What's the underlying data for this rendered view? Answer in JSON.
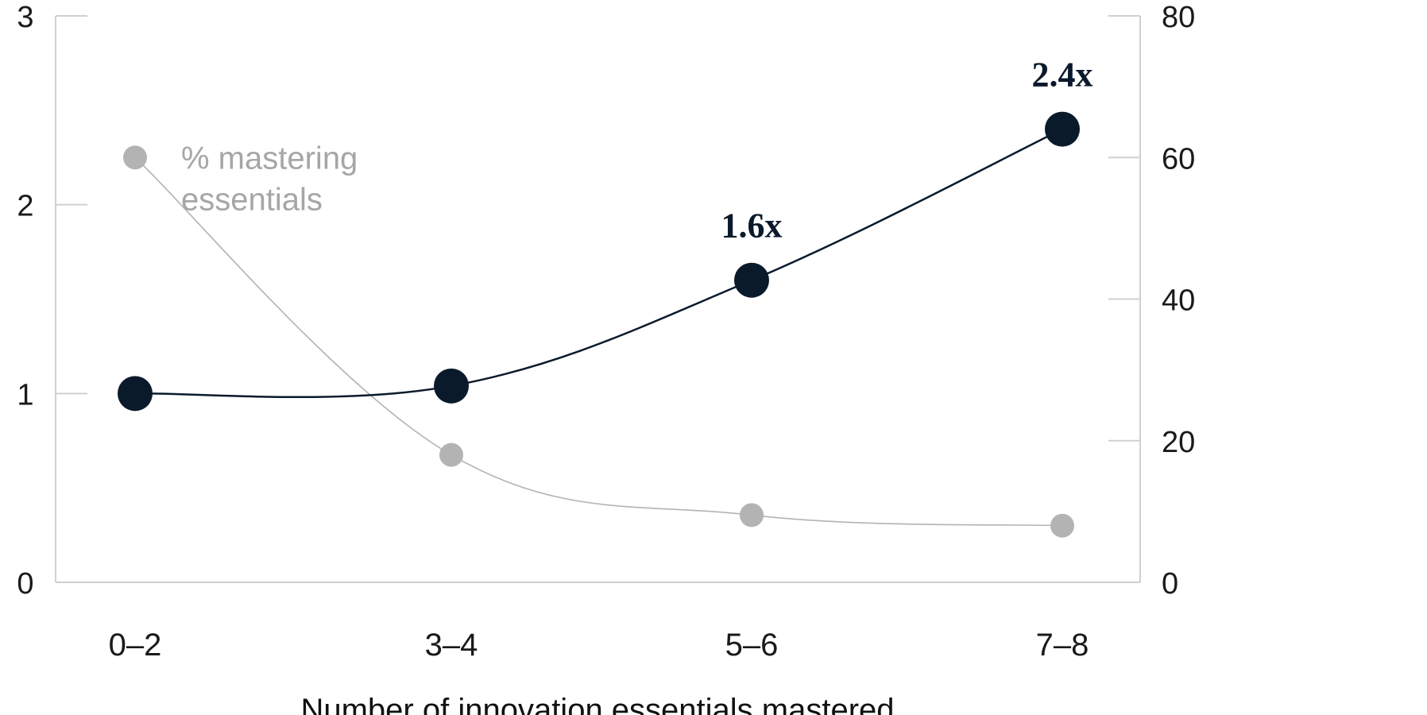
{
  "chart_data": {
    "type": "line",
    "x_categories": [
      "0–2",
      "3–4",
      "5–6",
      "7–8"
    ],
    "xlabel": "Number of innovation essentials mastered",
    "y_left": {
      "ticks": [
        "0",
        "1",
        "2",
        "3"
      ],
      "range": [
        0,
        3
      ]
    },
    "y_right": {
      "ticks": [
        "0",
        "20",
        "40",
        "60",
        "80"
      ],
      "range": [
        0,
        80
      ]
    },
    "series": [
      {
        "axis": "left",
        "color": "#0b1a2b",
        "values": [
          1.0,
          1.04,
          1.6,
          2.4
        ],
        "annotations": [
          "",
          "",
          "1.6x",
          "2.4x"
        ]
      },
      {
        "name_lines": [
          "% mastering",
          "essentials"
        ],
        "axis": "right",
        "color": "#b3b3b3",
        "values": [
          60,
          18,
          9.5,
          8
        ]
      }
    ]
  }
}
